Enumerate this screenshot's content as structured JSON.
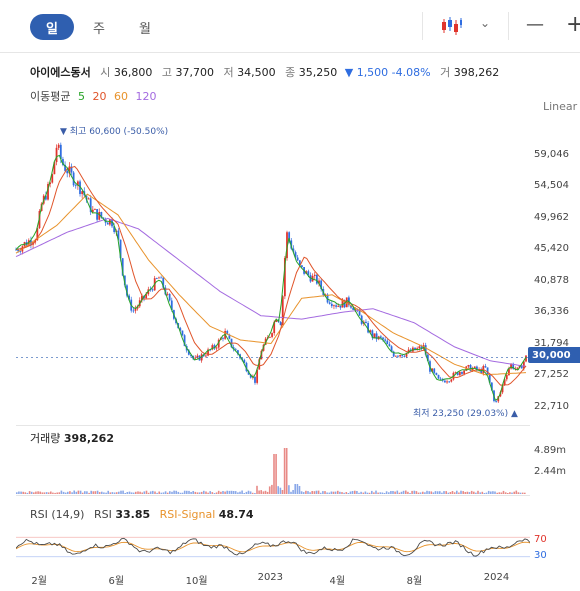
{
  "toolbar": {
    "tabs": [
      {
        "label": "일"
      },
      {
        "label": "주"
      },
      {
        "label": "월"
      }
    ],
    "chart_type_icon": "candlestick-icon",
    "dropdown_icon": "chevron-down-icon",
    "draw_line_icon": "horizontal-line-icon",
    "crosshair_icon": "plus-icon"
  },
  "info": {
    "name": "아이에스동서",
    "open_label": "시",
    "open": "36,800",
    "high_label": "고",
    "high": "37,700",
    "low_label": "저",
    "low": "34,500",
    "close_label": "종",
    "close": "35,250",
    "change": "▼ 1,500 -4.08%",
    "volume_label": "거",
    "volume": "398,262"
  },
  "ma": {
    "label": "이동평균",
    "periods": [
      {
        "label": "5",
        "color": "#27a327"
      },
      {
        "label": "20",
        "color": "#e0552b"
      },
      {
        "label": "60",
        "color": "#e8932c"
      },
      {
        "label": "120",
        "color": "#a46be0"
      }
    ]
  },
  "scale_label": "Linear",
  "current_price": "30,000",
  "high_annotation": "▼ 최고 60,600 (-50.50%)",
  "low_annotation": "최저 23,250 (29.03%) ▲",
  "volume_panel": {
    "label": "거래량",
    "value": "398,262",
    "ticks": [
      "4.89m",
      "2.44m"
    ]
  },
  "rsi_panel": {
    "label": "RSI (14,9)",
    "rsi_label": "RSI",
    "rsi_value": "33.85",
    "signal_label": "RSI-Signal",
    "signal_value": "48.74",
    "levels": [
      "70",
      "30"
    ]
  },
  "colors": {
    "accent": "#2f5fb0",
    "up": "#e0342c",
    "down": "#2f6de0",
    "rsi": "#4a4a4a",
    "signal": "#e8932c"
  },
  "chart_data": {
    "type": "candlestick",
    "y_ticks": [
      "59,046",
      "54,504",
      "49,962",
      "45,420",
      "40,878",
      "36,336",
      "31,794",
      "27,252",
      "22,710"
    ],
    "ylim": [
      22710,
      61000
    ],
    "x_ticks": [
      "2월",
      "6월",
      "10월",
      "2023",
      "4월",
      "8월",
      "2024"
    ],
    "close_series": [
      {
        "t": 0.0,
        "v": 45500
      },
      {
        "t": 0.02,
        "v": 46500
      },
      {
        "t": 0.04,
        "v": 47500
      },
      {
        "t": 0.05,
        "v": 52000
      },
      {
        "t": 0.07,
        "v": 55500
      },
      {
        "t": 0.08,
        "v": 60600
      },
      {
        "t": 0.09,
        "v": 58000
      },
      {
        "t": 0.11,
        "v": 56000
      },
      {
        "t": 0.13,
        "v": 54000
      },
      {
        "t": 0.15,
        "v": 51000
      },
      {
        "t": 0.17,
        "v": 50000
      },
      {
        "t": 0.19,
        "v": 49500
      },
      {
        "t": 0.2,
        "v": 47000
      },
      {
        "t": 0.21,
        "v": 42000
      },
      {
        "t": 0.22,
        "v": 38000
      },
      {
        "t": 0.23,
        "v": 36700
      },
      {
        "t": 0.25,
        "v": 38500
      },
      {
        "t": 0.27,
        "v": 40500
      },
      {
        "t": 0.28,
        "v": 41500
      },
      {
        "t": 0.29,
        "v": 40000
      },
      {
        "t": 0.31,
        "v": 36000
      },
      {
        "t": 0.33,
        "v": 32000
      },
      {
        "t": 0.35,
        "v": 29500
      },
      {
        "t": 0.37,
        "v": 30500
      },
      {
        "t": 0.39,
        "v": 31500
      },
      {
        "t": 0.41,
        "v": 33500
      },
      {
        "t": 0.42,
        "v": 32000
      },
      {
        "t": 0.44,
        "v": 30000
      },
      {
        "t": 0.46,
        "v": 27500
      },
      {
        "t": 0.47,
        "v": 26500
      },
      {
        "t": 0.48,
        "v": 31000
      },
      {
        "t": 0.5,
        "v": 33500
      },
      {
        "t": 0.51,
        "v": 36000
      },
      {
        "t": 0.52,
        "v": 35000
      },
      {
        "t": 0.53,
        "v": 48000
      },
      {
        "t": 0.54,
        "v": 46000
      },
      {
        "t": 0.555,
        "v": 43000
      },
      {
        "t": 0.57,
        "v": 42000
      },
      {
        "t": 0.59,
        "v": 41000
      },
      {
        "t": 0.61,
        "v": 38500
      },
      {
        "t": 0.63,
        "v": 37500
      },
      {
        "t": 0.65,
        "v": 38000
      },
      {
        "t": 0.66,
        "v": 37500
      },
      {
        "t": 0.68,
        "v": 35000
      },
      {
        "t": 0.7,
        "v": 33000
      },
      {
        "t": 0.72,
        "v": 32500
      },
      {
        "t": 0.74,
        "v": 30500
      },
      {
        "t": 0.76,
        "v": 30500
      },
      {
        "t": 0.78,
        "v": 31000
      },
      {
        "t": 0.8,
        "v": 31500
      },
      {
        "t": 0.81,
        "v": 28500
      },
      {
        "t": 0.83,
        "v": 26500
      },
      {
        "t": 0.85,
        "v": 27000
      },
      {
        "t": 0.87,
        "v": 28000
      },
      {
        "t": 0.89,
        "v": 28500
      },
      {
        "t": 0.91,
        "v": 28000
      },
      {
        "t": 0.92,
        "v": 28500
      },
      {
        "t": 0.93,
        "v": 26000
      },
      {
        "t": 0.94,
        "v": 23250
      },
      {
        "t": 0.95,
        "v": 25000
      },
      {
        "t": 0.96,
        "v": 27500
      },
      {
        "t": 0.97,
        "v": 29000
      },
      {
        "t": 0.985,
        "v": 28000
      },
      {
        "t": 1.0,
        "v": 30000
      }
    ],
    "ma120": [
      {
        "t": 0.0,
        "v": 44500
      },
      {
        "t": 0.1,
        "v": 48000
      },
      {
        "t": 0.18,
        "v": 50000
      },
      {
        "t": 0.24,
        "v": 48500
      },
      {
        "t": 0.32,
        "v": 44000
      },
      {
        "t": 0.4,
        "v": 39500
      },
      {
        "t": 0.48,
        "v": 36000
      },
      {
        "t": 0.56,
        "v": 35500
      },
      {
        "t": 0.64,
        "v": 36500
      },
      {
        "t": 0.7,
        "v": 37000
      },
      {
        "t": 0.78,
        "v": 35000
      },
      {
        "t": 0.86,
        "v": 31500
      },
      {
        "t": 0.93,
        "v": 29500
      },
      {
        "t": 1.0,
        "v": 28700
      }
    ],
    "ma60": [
      {
        "t": 0.0,
        "v": 45000
      },
      {
        "t": 0.08,
        "v": 49000
      },
      {
        "t": 0.14,
        "v": 53500
      },
      {
        "t": 0.2,
        "v": 50500
      },
      {
        "t": 0.26,
        "v": 44000
      },
      {
        "t": 0.32,
        "v": 39000
      },
      {
        "t": 0.38,
        "v": 34500
      },
      {
        "t": 0.44,
        "v": 32500
      },
      {
        "t": 0.5,
        "v": 32000
      },
      {
        "t": 0.56,
        "v": 38500
      },
      {
        "t": 0.62,
        "v": 39000
      },
      {
        "t": 0.68,
        "v": 36500
      },
      {
        "t": 0.74,
        "v": 33500
      },
      {
        "t": 0.8,
        "v": 31500
      },
      {
        "t": 0.86,
        "v": 29000
      },
      {
        "t": 0.92,
        "v": 27500
      },
      {
        "t": 1.0,
        "v": 27800
      }
    ],
    "volume_ticks_note": "",
    "rsi_levels": [
      70,
      30
    ]
  }
}
